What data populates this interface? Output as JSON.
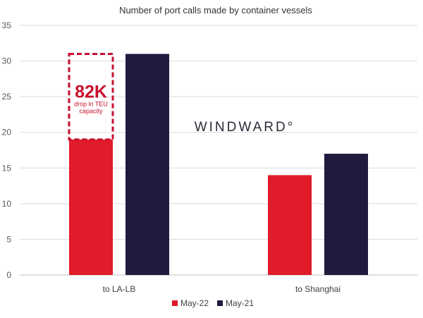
{
  "chart_data": {
    "type": "bar",
    "title": "Number of port calls made by container vessels",
    "categories": [
      "to LA-LB",
      "to Shanghai"
    ],
    "series": [
      {
        "name": "May-22",
        "values": [
          19,
          14
        ],
        "color": "#e01b2a"
      },
      {
        "name": "May-21",
        "values": [
          31,
          17
        ],
        "color": "#1f1a3e"
      }
    ],
    "ylim": [
      0,
      35
    ],
    "yticks": [
      0,
      5,
      10,
      15,
      20,
      25,
      30,
      35
    ],
    "grid": true,
    "legend_position": "bottom-center",
    "annotation": {
      "category": "to LA-LB",
      "series": "May-22",
      "from_value": 19,
      "to_value": 31,
      "headline": "82K",
      "line1": "drop in TEU",
      "line2": "capacity",
      "color": "#c8102e"
    },
    "watermark": "WINDWARD°"
  }
}
